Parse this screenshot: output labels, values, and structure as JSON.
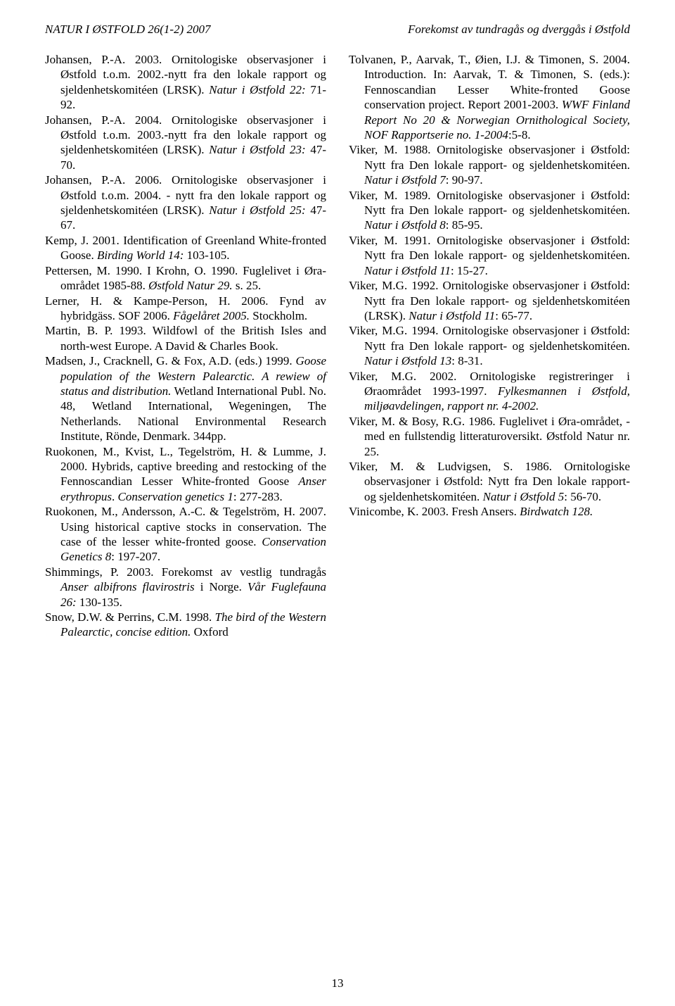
{
  "runningHead": {
    "left": "NATUR I ØSTFOLD 26(1-2) 2007",
    "right": "Forekomst av tundragås og dverggås i Østfold"
  },
  "pageNumber": "13",
  "leftColumn": [
    [
      {
        "t": "Johansen, P.-A. 2003. Ornitologiske observasjoner i Østfold t.o.m. 2002.-nytt fra den lokale rapport og sjeldenhetskomitéen (LRSK). "
      },
      {
        "t": "Natur i Østfold 22:",
        "i": true
      },
      {
        "t": " 71-92."
      }
    ],
    [
      {
        "t": "Johansen, P.-A. 2004. Ornitologiske observasjoner i Østfold t.o.m. 2003.-nytt fra den lokale rapport og sjeldenhetskomitéen (LRSK). "
      },
      {
        "t": "Natur i Østfold 23:",
        "i": true
      },
      {
        "t": " 47-70."
      }
    ],
    [
      {
        "t": "Johansen, P.-A. 2006. Ornitologiske observasjoner i Østfold t.o.m. 2004. - nytt fra den lokale rapport og sjeldenhetskomitéen (LRSK). "
      },
      {
        "t": "Natur i Østfold 25:",
        "i": true
      },
      {
        "t": " 47-67."
      }
    ],
    [
      {
        "t": "Kemp, J. 2001. Identification of Greenland White-fronted Goose. "
      },
      {
        "t": "Birding World 14:",
        "i": true
      },
      {
        "t": " 103-105."
      }
    ],
    [
      {
        "t": "Pettersen, M. 1990. I Krohn, O. 1990. Fuglelivet i Øra-området 1985-88. "
      },
      {
        "t": "Østfold Natur 29.",
        "i": true
      },
      {
        "t": " s. 25."
      }
    ],
    [
      {
        "t": "Lerner, H. & Kampe-Person, H. 2006. Fynd av hybridgäss. SOF 2006. "
      },
      {
        "t": "Fågelåret 2005.",
        "i": true
      },
      {
        "t": " Stockholm."
      }
    ],
    [
      {
        "t": "Martin, B. P. 1993. Wildfowl of the British Isles and north-west Europe. A David & Charles Book."
      }
    ],
    [
      {
        "t": "Madsen, J., Cracknell, G. & Fox, A.D. (eds.) 1999. "
      },
      {
        "t": "Goose population of the Western Palearctic. A rewiew of status and distribution.",
        "i": true
      },
      {
        "t": " Wetland International Publ. No. 48, Wetland International, Wegeningen, The Netherlands. National Environmental Research Institute, Rönde, Denmark. 344pp."
      }
    ],
    [
      {
        "t": "Ruokonen, M., Kvist, L., Tegelström, H. & Lumme, J. 2000. Hybrids, captive breeding and restocking of the Fennoscandian Lesser White-fronted Goose "
      },
      {
        "t": "Anser erythropus",
        "i": true
      },
      {
        "t": ". "
      },
      {
        "t": "Conservation genetics 1",
        "i": true
      },
      {
        "t": ": 277-283."
      }
    ],
    [
      {
        "t": "Ruokonen, M., Andersson, A.-C. & Tegelström, H. 2007. Using historical captive stocks in conservation. The case of the lesser white-fronted goose. "
      },
      {
        "t": "Conservation Genetics 8",
        "i": true
      },
      {
        "t": ": 197-207."
      }
    ],
    [
      {
        "t": "Shimmings, P. 2003. Forekomst av vestlig tundragås "
      },
      {
        "t": "Anser albifrons flavirostris",
        "i": true
      },
      {
        "t": " i Norge. "
      },
      {
        "t": "Vår Fuglefauna 26:",
        "i": true
      },
      {
        "t": " 130-135."
      }
    ],
    [
      {
        "t": "Snow, D.W. & Perrins, C.M. 1998. "
      },
      {
        "t": "The bird of the Western Palearctic, concise edition.",
        "i": true
      },
      {
        "t": " Oxford"
      }
    ]
  ],
  "rightColumn": [
    [
      {
        "t": "Tolvanen, P., Aarvak, T., Øien, I.J. & Timonen, S. 2004. Introduction. In: Aarvak, T. & Timonen, S. (eds.): Fennoscandian Lesser White-fronted Goose conservation project. Report 2001-2003. "
      },
      {
        "t": "WWF Finland Report No 20 & Norwegian Ornithological Society, NOF Rapportserie no. 1-2004",
        "i": true
      },
      {
        "t": ":5-8."
      }
    ],
    [
      {
        "t": "Viker, M. 1988. Ornitologiske observasjoner i Østfold: Nytt fra Den lokale rapport- og sjeldenhetskomitéen. "
      },
      {
        "t": "Natur i Østfold 7",
        "i": true
      },
      {
        "t": ": 90-97."
      }
    ],
    [
      {
        "t": "Viker, M. 1989. Ornitologiske observasjoner i Østfold: Nytt fra Den lokale rapport- og sjeldenhetskomitéen. "
      },
      {
        "t": "Natur i Østfold 8",
        "i": true
      },
      {
        "t": ": 85-95."
      }
    ],
    [
      {
        "t": "Viker, M. 1991. Ornitologiske observasjoner i Østfold: Nytt fra Den lokale rapport- og sjeldenhetskomitéen. "
      },
      {
        "t": "Natur i Østfold 11",
        "i": true
      },
      {
        "t": ": 15-27."
      }
    ],
    [
      {
        "t": "Viker, M.G. 1992. Ornitologiske observasjoner i Østfold: Nytt fra Den lokale rapport- og sjeldenhetskomitéen (LRSK). "
      },
      {
        "t": "Natur i Østfold 11",
        "i": true
      },
      {
        "t": ": 65-77."
      }
    ],
    [
      {
        "t": "Viker, M.G. 1994. Ornitologiske observasjoner i Østfold: Nytt fra Den lokale rapport- og sjeldenhetskomitéen. "
      },
      {
        "t": "Natur i Østfold 13",
        "i": true
      },
      {
        "t": ": 8-31."
      }
    ],
    [
      {
        "t": "Viker, M.G. 2002. Ornitologiske registreringer i Øraområdet 1993-1997. "
      },
      {
        "t": "Fylkesmannen i Østfold, miljøavdelingen, rapport nr. 4-2002.",
        "i": true
      }
    ],
    [
      {
        "t": "Viker, M. & Bosy, R.G. 1986. Fuglelivet i Øra-området, - med en fullstendig litteraturoversikt. Østfold Natur nr. 25."
      }
    ],
    [
      {
        "t": "Viker, M. & Ludvigsen, S. 1986. Ornitologiske observasjoner i Østfold: Nytt fra Den lokale rapport- og sjeldenhetskomitéen. "
      },
      {
        "t": "Natur i Østfold 5",
        "i": true
      },
      {
        "t": ": 56-70."
      }
    ],
    [
      {
        "t": "Vinicombe, K. 2003. Fresh Ansers. "
      },
      {
        "t": "Birdwatch 128.",
        "i": true
      }
    ]
  ]
}
